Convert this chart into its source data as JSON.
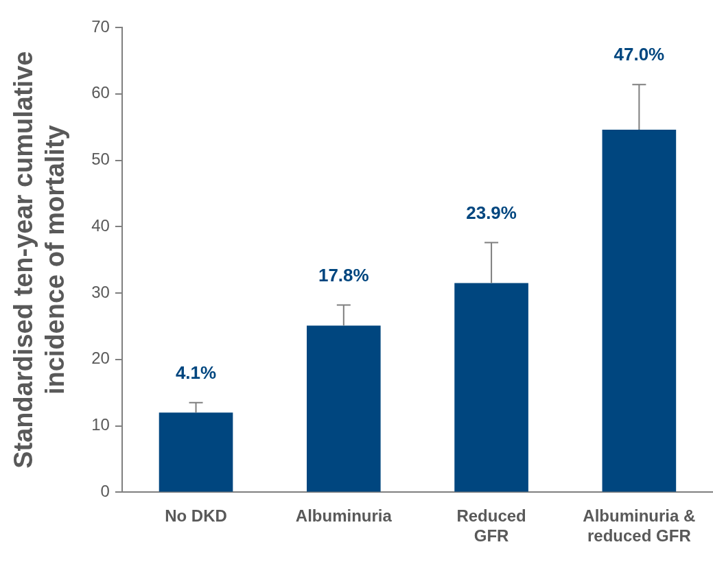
{
  "chart_data": {
    "type": "bar",
    "ylabel": "Standardised ten-year cumulative\nincidence of mortality",
    "categories": [
      "No DKD",
      "Albuminuria",
      "Reduced\nGFR",
      "Albuminuria &\nreduced GFR"
    ],
    "values": [
      12.0,
      25.1,
      31.5,
      54.6
    ],
    "color": "#00467f",
    "errors": [
      [
        12.0,
        13.5
      ],
      [
        25.1,
        28.2
      ],
      [
        31.5,
        37.6
      ],
      [
        54.6,
        61.4
      ]
    ],
    "annotations": [
      "4.1%",
      "17.8%",
      "23.9%",
      "47.0%"
    ],
    "ylim": [
      0,
      70
    ],
    "yticks": [
      0,
      10,
      20,
      30,
      40,
      50,
      60,
      70
    ],
    "grid": false,
    "legend": false
  }
}
